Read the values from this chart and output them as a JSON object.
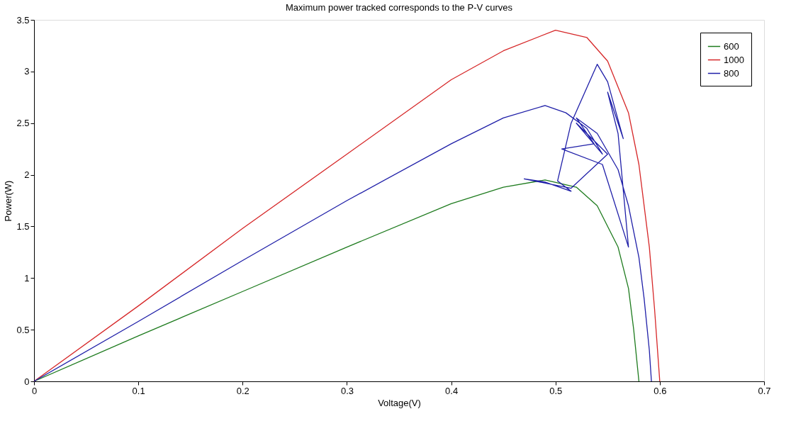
{
  "chart_data": {
    "type": "line",
    "title": "Maximum power tracked corresponds to the P-V curves",
    "xlabel": "Voltage(V)",
    "ylabel": "Power(W)",
    "xlim": [
      0,
      0.7
    ],
    "xticks": [
      0,
      0.1,
      0.2,
      0.3,
      0.4,
      0.5,
      0.6,
      0.7
    ],
    "ylim": [
      0,
      3.5
    ],
    "yticks": [
      0,
      0.5,
      1,
      1.5,
      2,
      2.5,
      3,
      3.5
    ],
    "grid": false,
    "legend": "top right",
    "marker": "none",
    "line_style": "solid",
    "series": [
      {
        "name": "600",
        "color": "#1e7b1e",
        "x": [
          0,
          0.1,
          0.2,
          0.3,
          0.4,
          0.45,
          0.49,
          0.52,
          0.54,
          0.56,
          0.57,
          0.575,
          0.58
        ],
        "values": [
          0,
          0.44,
          0.87,
          1.3,
          1.72,
          1.88,
          1.95,
          1.88,
          1.7,
          1.3,
          0.9,
          0.5,
          0
        ]
      },
      {
        "name": "1000",
        "color": "#d62728",
        "x": [
          0,
          0.1,
          0.2,
          0.3,
          0.4,
          0.45,
          0.5,
          0.53,
          0.55,
          0.57,
          0.58,
          0.59,
          0.595,
          0.6
        ],
        "values": [
          0,
          0.73,
          1.48,
          2.2,
          2.92,
          3.2,
          3.4,
          3.33,
          3.1,
          2.6,
          2.1,
          1.3,
          0.7,
          0
        ]
      },
      {
        "name": "800",
        "color": "#1f1fa8",
        "x": [
          0,
          0.1,
          0.2,
          0.3,
          0.4,
          0.45,
          0.49,
          0.51,
          0.53,
          0.545,
          0.52,
          0.535,
          0.55,
          0.515,
          0.47,
          0.49,
          0.515,
          0.502,
          0.515,
          0.54,
          0.55,
          0.565,
          0.55,
          0.56,
          0.57,
          0.545,
          0.506,
          0.537,
          0.52,
          0.54,
          0.56,
          0.57,
          0.58,
          0.585,
          0.59,
          0.592
        ],
        "values": [
          0,
          0.58,
          1.17,
          1.75,
          2.3,
          2.55,
          2.67,
          2.6,
          2.45,
          2.2,
          2.5,
          2.35,
          2.2,
          1.87,
          1.96,
          1.93,
          1.84,
          1.94,
          2.5,
          3.07,
          2.9,
          2.35,
          2.8,
          2.4,
          1.3,
          2.1,
          2.25,
          2.3,
          2.55,
          2.4,
          2.05,
          1.7,
          1.2,
          0.8,
          0.3,
          0
        ]
      }
    ]
  }
}
